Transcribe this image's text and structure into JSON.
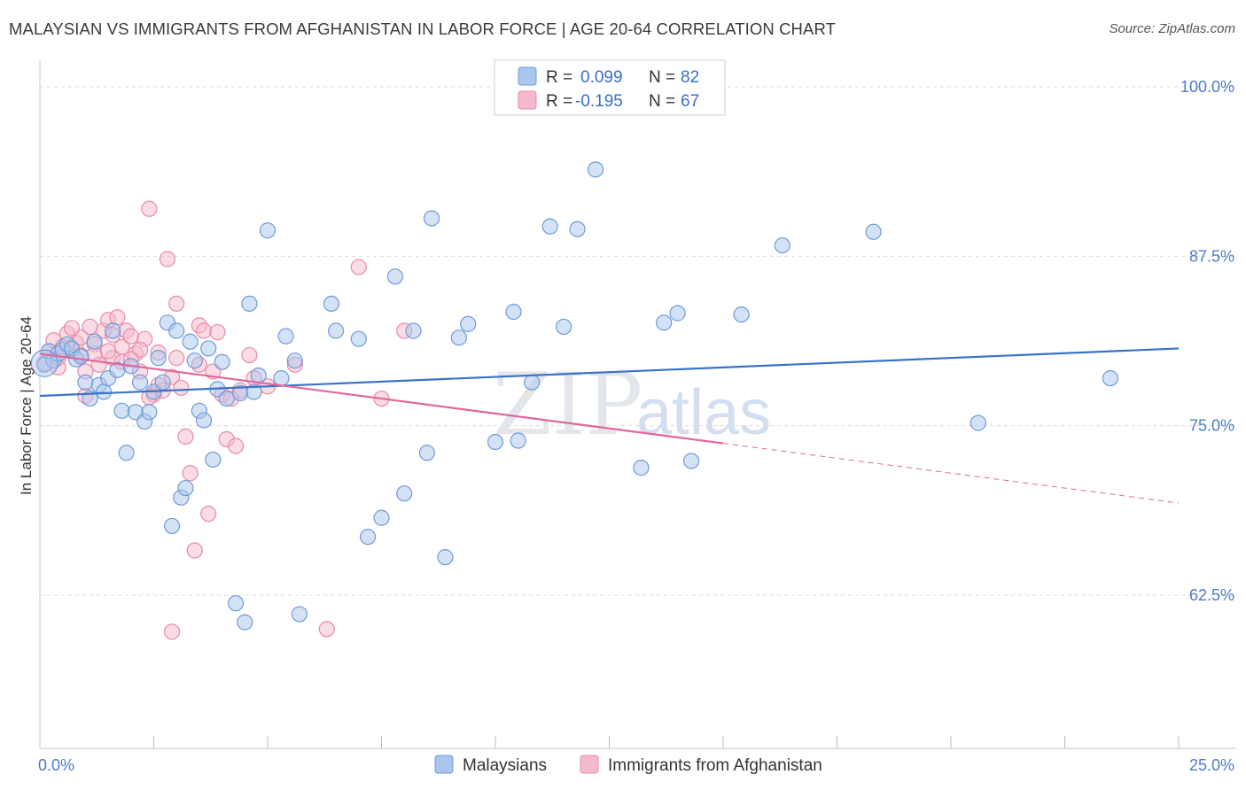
{
  "header": {
    "title": "MALAYSIAN VS IMMIGRANTS FROM AFGHANISTAN IN LABOR FORCE | AGE 20-64 CORRELATION CHART",
    "source": "Source: ZipAtlas.com"
  },
  "watermark": {
    "zip": "ZIP",
    "atlas": "atlas"
  },
  "colors": {
    "blue_fill": "#aac6ee",
    "blue_stroke": "#6f9bd8",
    "blue_line": "#3b72c9",
    "pink_fill": "#f5b9cc",
    "pink_stroke": "#e98aa8",
    "pink_line": "#e0679a",
    "grid": "#d9d9d9",
    "tick_text": "#4a7cc9"
  },
  "legend": {
    "r_label": "R =",
    "n_label": "N =",
    "rows": [
      {
        "r": "0.099",
        "n": "82"
      },
      {
        "r": "-0.195",
        "n": "67"
      }
    ]
  },
  "chart_data": {
    "type": "scatter",
    "title": "MALAYSIAN VS IMMIGRANTS FROM AFGHANISTAN IN LABOR FORCE | AGE 20-64 CORRELATION CHART",
    "xlabel": "",
    "ylabel": "In Labor Force | Age 20-64",
    "xlim": [
      0,
      25
    ],
    "ylim": [
      50,
      102
    ],
    "x_tick_labels": [
      "0.0%",
      "25.0%"
    ],
    "x_ticks": [
      0,
      25
    ],
    "y_ticks": [
      62.5,
      75.0,
      87.5,
      100.0
    ],
    "y_tick_labels": [
      "62.5%",
      "75.0%",
      "87.5%",
      "100.0%"
    ],
    "grid": true,
    "legend_position": "top-center",
    "series": [
      {
        "name": "Malaysians",
        "r": 0.099,
        "n": 82,
        "trend": {
          "x": [
            0,
            25
          ],
          "y": [
            77.2,
            80.7
          ],
          "dashed_from": null
        },
        "points": [
          [
            0.1,
            79.5
          ],
          [
            0.2,
            80.5
          ],
          [
            0.3,
            79.8
          ],
          [
            0.4,
            80.3
          ],
          [
            0.5,
            80.6
          ],
          [
            0.6,
            81.0
          ],
          [
            0.7,
            80.7
          ],
          [
            0.8,
            79.9
          ],
          [
            0.9,
            80.1
          ],
          [
            1.0,
            78.2
          ],
          [
            1.1,
            77.0
          ],
          [
            1.2,
            81.2
          ],
          [
            1.3,
            78.0
          ],
          [
            1.4,
            77.5
          ],
          [
            1.5,
            78.5
          ],
          [
            1.6,
            82.0
          ],
          [
            1.7,
            79.1
          ],
          [
            1.8,
            76.1
          ],
          [
            1.9,
            73.0
          ],
          [
            2.0,
            79.4
          ],
          [
            2.1,
            76.0
          ],
          [
            2.2,
            78.2
          ],
          [
            2.3,
            75.3
          ],
          [
            2.4,
            76.0
          ],
          [
            2.5,
            77.5
          ],
          [
            2.6,
            80.0
          ],
          [
            2.7,
            78.2
          ],
          [
            2.8,
            82.6
          ],
          [
            2.9,
            67.6
          ],
          [
            3.0,
            82.0
          ],
          [
            3.1,
            69.7
          ],
          [
            3.2,
            70.4
          ],
          [
            3.3,
            81.2
          ],
          [
            3.4,
            79.8
          ],
          [
            3.5,
            76.1
          ],
          [
            3.6,
            75.4
          ],
          [
            3.7,
            80.7
          ],
          [
            3.8,
            72.5
          ],
          [
            3.9,
            77.7
          ],
          [
            4.0,
            79.7
          ],
          [
            4.1,
            77.0
          ],
          [
            4.3,
            61.9
          ],
          [
            4.4,
            77.4
          ],
          [
            4.5,
            60.5
          ],
          [
            4.6,
            84.0
          ],
          [
            4.7,
            77.5
          ],
          [
            4.8,
            78.7
          ],
          [
            5.0,
            89.4
          ],
          [
            5.3,
            78.5
          ],
          [
            5.4,
            81.6
          ],
          [
            5.6,
            79.8
          ],
          [
            5.7,
            61.1
          ],
          [
            6.4,
            84.0
          ],
          [
            6.5,
            82.0
          ],
          [
            7.0,
            81.4
          ],
          [
            7.2,
            66.8
          ],
          [
            7.5,
            68.2
          ],
          [
            7.8,
            86.0
          ],
          [
            8.0,
            70.0
          ],
          [
            8.2,
            82.0
          ],
          [
            8.5,
            73.0
          ],
          [
            8.6,
            90.3
          ],
          [
            8.9,
            65.3
          ],
          [
            9.2,
            81.5
          ],
          [
            9.4,
            82.5
          ],
          [
            10.0,
            73.8
          ],
          [
            10.4,
            83.4
          ],
          [
            10.5,
            73.9
          ],
          [
            10.8,
            78.2
          ],
          [
            11.2,
            89.7
          ],
          [
            11.5,
            82.3
          ],
          [
            11.8,
            89.5
          ],
          [
            12.2,
            93.9
          ],
          [
            13.2,
            71.9
          ],
          [
            13.7,
            82.6
          ],
          [
            14.0,
            83.3
          ],
          [
            14.3,
            72.4
          ],
          [
            15.4,
            83.2
          ],
          [
            16.3,
            88.3
          ],
          [
            18.3,
            89.3
          ],
          [
            20.6,
            75.2
          ],
          [
            23.5,
            78.5
          ]
        ]
      },
      {
        "name": "Immigrants from Afghanistan",
        "r": -0.195,
        "n": 67,
        "trend": {
          "x": [
            0,
            25
          ],
          "y": [
            80.3,
            69.3
          ],
          "dashed_from": 15
        },
        "points": [
          [
            0.1,
            79.6
          ],
          [
            0.2,
            80.5
          ],
          [
            0.3,
            81.3
          ],
          [
            0.4,
            80.0
          ],
          [
            0.5,
            80.8
          ],
          [
            0.6,
            81.8
          ],
          [
            0.7,
            80.6
          ],
          [
            0.8,
            81.1
          ],
          [
            0.9,
            80.2
          ],
          [
            1.0,
            77.2
          ],
          [
            1.1,
            82.3
          ],
          [
            1.2,
            81.0
          ],
          [
            1.3,
            79.5
          ],
          [
            1.4,
            82.0
          ],
          [
            1.5,
            82.8
          ],
          [
            1.6,
            81.7
          ],
          [
            1.7,
            83.0
          ],
          [
            1.8,
            80.8
          ],
          [
            1.9,
            82.0
          ],
          [
            2.0,
            81.6
          ],
          [
            2.1,
            80.3
          ],
          [
            2.2,
            79.0
          ],
          [
            2.3,
            81.4
          ],
          [
            2.4,
            91.0
          ],
          [
            2.5,
            77.3
          ],
          [
            2.6,
            80.4
          ],
          [
            2.7,
            77.6
          ],
          [
            2.8,
            87.3
          ],
          [
            2.9,
            78.6
          ],
          [
            3.0,
            84.0
          ],
          [
            3.1,
            77.8
          ],
          [
            3.2,
            74.2
          ],
          [
            3.3,
            71.5
          ],
          [
            3.4,
            65.8
          ],
          [
            3.5,
            82.4
          ],
          [
            3.6,
            82.0
          ],
          [
            3.7,
            68.5
          ],
          [
            3.8,
            79.0
          ],
          [
            3.9,
            81.9
          ],
          [
            4.0,
            77.3
          ],
          [
            4.1,
            74.0
          ],
          [
            4.3,
            73.5
          ],
          [
            4.4,
            77.6
          ],
          [
            4.6,
            80.2
          ],
          [
            4.7,
            78.5
          ],
          [
            5.0,
            77.9
          ],
          [
            5.6,
            79.5
          ],
          [
            6.3,
            60.0
          ],
          [
            7.0,
            86.7
          ],
          [
            7.5,
            77.0
          ],
          [
            8.0,
            82.0
          ],
          [
            2.9,
            59.8
          ],
          [
            1.6,
            80.0
          ],
          [
            1.8,
            79.7
          ],
          [
            1.2,
            80.3
          ],
          [
            0.9,
            81.5
          ],
          [
            0.7,
            82.2
          ],
          [
            2.6,
            78.0
          ],
          [
            3.0,
            80.0
          ],
          [
            2.2,
            80.6
          ],
          [
            1.5,
            80.5
          ],
          [
            1.0,
            79.0
          ],
          [
            0.4,
            79.3
          ],
          [
            2.0,
            79.9
          ],
          [
            3.5,
            79.5
          ],
          [
            4.2,
            77.0
          ],
          [
            2.4,
            77.1
          ]
        ]
      }
    ]
  }
}
